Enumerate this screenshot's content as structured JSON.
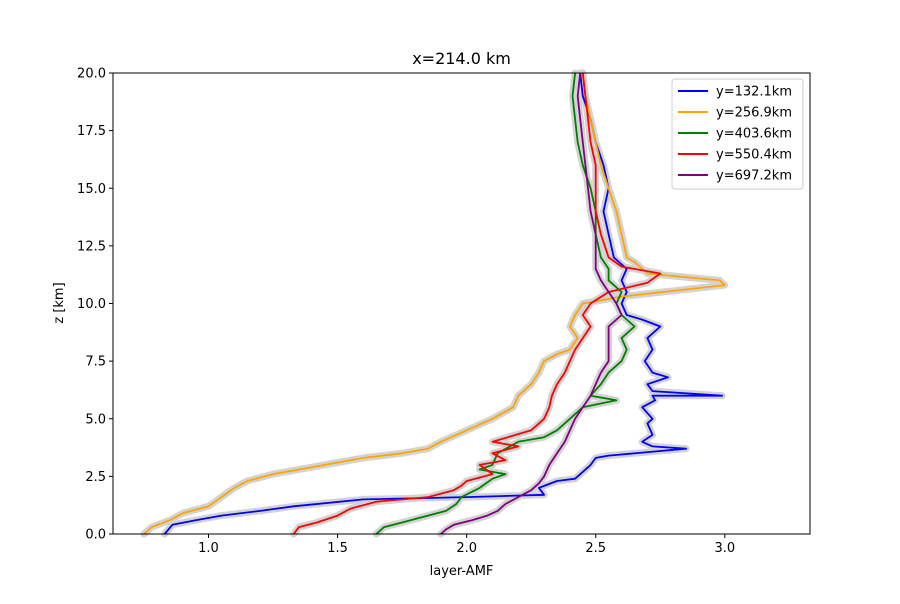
{
  "chart_data": {
    "type": "line",
    "title": "x=214.0 km",
    "xlabel": "layer-AMF",
    "ylabel": "z [km]",
    "xlim": [
      0.63,
      3.33
    ],
    "ylim": [
      0,
      20
    ],
    "x_ticks": [
      1.0,
      1.5,
      2.0,
      2.5,
      3.0
    ],
    "y_ticks": [
      0.0,
      2.5,
      5.0,
      7.5,
      10.0,
      12.5,
      15.0,
      17.5,
      20.0
    ],
    "x_tick_labels": [
      "1.0",
      "1.5",
      "2.0",
      "2.5",
      "3.0"
    ],
    "y_tick_labels": [
      "0.0",
      "2.5",
      "5.0",
      "7.5",
      "10.0",
      "12.5",
      "15.0",
      "17.5",
      "20.0"
    ],
    "grid": false,
    "legend_position": "top-right",
    "uncertainty_band_color": "#d3d3d3",
    "series": [
      {
        "name": "y=132.1km",
        "color": "#0000ff",
        "points": [
          [
            0.83,
            0.0
          ],
          [
            0.86,
            0.4
          ],
          [
            0.95,
            0.6
          ],
          [
            1.05,
            0.8
          ],
          [
            1.2,
            1.0
          ],
          [
            1.33,
            1.2
          ],
          [
            1.6,
            1.5
          ],
          [
            2.0,
            1.6
          ],
          [
            2.3,
            1.7
          ],
          [
            2.28,
            2.0
          ],
          [
            2.35,
            2.3
          ],
          [
            2.42,
            2.4
          ],
          [
            2.48,
            3.0
          ],
          [
            2.5,
            3.3
          ],
          [
            2.55,
            3.4
          ],
          [
            2.85,
            3.7
          ],
          [
            2.72,
            3.8
          ],
          [
            2.68,
            4.0
          ],
          [
            2.72,
            4.3
          ],
          [
            2.7,
            4.8
          ],
          [
            2.72,
            5.0
          ],
          [
            2.68,
            5.5
          ],
          [
            2.73,
            5.8
          ],
          [
            2.72,
            6.0
          ],
          [
            2.99,
            6.0
          ],
          [
            2.72,
            6.2
          ],
          [
            2.7,
            6.5
          ],
          [
            2.78,
            6.8
          ],
          [
            2.72,
            7.0
          ],
          [
            2.69,
            7.5
          ],
          [
            2.72,
            8.0
          ],
          [
            2.7,
            8.5
          ],
          [
            2.75,
            9.0
          ],
          [
            2.68,
            9.3
          ],
          [
            2.62,
            9.5
          ],
          [
            2.6,
            10.0
          ],
          [
            2.62,
            10.5
          ],
          [
            2.6,
            11.0
          ],
          [
            2.62,
            11.5
          ],
          [
            2.57,
            12.0
          ],
          [
            2.55,
            13.0
          ],
          [
            2.53,
            14.0
          ],
          [
            2.55,
            15.0
          ],
          [
            2.53,
            16.0
          ],
          [
            2.5,
            17.0
          ],
          [
            2.48,
            18.0
          ],
          [
            2.45,
            19.0
          ],
          [
            2.44,
            20.0
          ]
        ]
      },
      {
        "name": "y=256.9km",
        "color": "#ffa500",
        "points": [
          [
            0.75,
            0.0
          ],
          [
            0.78,
            0.3
          ],
          [
            0.85,
            0.6
          ],
          [
            0.9,
            0.9
          ],
          [
            1.0,
            1.2
          ],
          [
            1.05,
            1.6
          ],
          [
            1.1,
            2.0
          ],
          [
            1.15,
            2.3
          ],
          [
            1.25,
            2.6
          ],
          [
            1.4,
            2.9
          ],
          [
            1.5,
            3.1
          ],
          [
            1.6,
            3.3
          ],
          [
            1.75,
            3.5
          ],
          [
            1.85,
            3.7
          ],
          [
            1.9,
            4.0
          ],
          [
            2.0,
            4.5
          ],
          [
            2.1,
            5.0
          ],
          [
            2.18,
            5.5
          ],
          [
            2.2,
            6.0
          ],
          [
            2.25,
            6.5
          ],
          [
            2.28,
            7.0
          ],
          [
            2.3,
            7.5
          ],
          [
            2.35,
            7.8
          ],
          [
            2.4,
            8.0
          ],
          [
            2.43,
            8.5
          ],
          [
            2.4,
            9.0
          ],
          [
            2.42,
            9.5
          ],
          [
            2.45,
            10.0
          ],
          [
            2.6,
            10.3
          ],
          [
            3.0,
            10.8
          ],
          [
            2.98,
            11.0
          ],
          [
            2.7,
            11.3
          ],
          [
            2.65,
            11.8
          ],
          [
            2.62,
            12.0
          ],
          [
            2.6,
            13.0
          ],
          [
            2.58,
            14.0
          ],
          [
            2.55,
            15.0
          ],
          [
            2.52,
            16.0
          ],
          [
            2.5,
            17.0
          ],
          [
            2.48,
            18.0
          ],
          [
            2.46,
            19.0
          ],
          [
            2.45,
            20.0
          ]
        ]
      },
      {
        "name": "y=403.6km",
        "color": "#008000",
        "points": [
          [
            1.65,
            0.0
          ],
          [
            1.68,
            0.3
          ],
          [
            1.75,
            0.5
          ],
          [
            1.85,
            0.8
          ],
          [
            1.92,
            1.0
          ],
          [
            1.96,
            1.3
          ],
          [
            1.98,
            1.6
          ],
          [
            2.05,
            2.0
          ],
          [
            2.1,
            2.4
          ],
          [
            2.15,
            2.6
          ],
          [
            2.05,
            2.8
          ],
          [
            2.1,
            3.0
          ],
          [
            2.12,
            3.5
          ],
          [
            2.2,
            4.0
          ],
          [
            2.3,
            4.2
          ],
          [
            2.35,
            4.5
          ],
          [
            2.4,
            5.0
          ],
          [
            2.45,
            5.5
          ],
          [
            2.58,
            5.8
          ],
          [
            2.48,
            6.0
          ],
          [
            2.52,
            6.5
          ],
          [
            2.55,
            7.0
          ],
          [
            2.6,
            7.5
          ],
          [
            2.62,
            8.0
          ],
          [
            2.6,
            8.5
          ],
          [
            2.65,
            9.0
          ],
          [
            2.6,
            9.5
          ],
          [
            2.58,
            10.0
          ],
          [
            2.6,
            10.5
          ],
          [
            2.55,
            11.0
          ],
          [
            2.55,
            11.5
          ],
          [
            2.52,
            12.0
          ],
          [
            2.5,
            13.0
          ],
          [
            2.5,
            14.0
          ],
          [
            2.48,
            15.0
          ],
          [
            2.45,
            16.0
          ],
          [
            2.43,
            17.0
          ],
          [
            2.42,
            18.0
          ],
          [
            2.41,
            19.0
          ],
          [
            2.42,
            20.0
          ]
        ]
      },
      {
        "name": "y=550.4km",
        "color": "#ff0000",
        "points": [
          [
            1.33,
            0.0
          ],
          [
            1.35,
            0.3
          ],
          [
            1.42,
            0.5
          ],
          [
            1.5,
            0.8
          ],
          [
            1.55,
            1.1
          ],
          [
            1.65,
            1.4
          ],
          [
            1.85,
            1.6
          ],
          [
            1.95,
            1.9
          ],
          [
            1.98,
            2.1
          ],
          [
            2.0,
            2.3
          ],
          [
            2.1,
            2.6
          ],
          [
            2.05,
            3.0
          ],
          [
            2.15,
            3.2
          ],
          [
            2.1,
            3.5
          ],
          [
            2.2,
            3.8
          ],
          [
            2.1,
            4.0
          ],
          [
            2.25,
            4.5
          ],
          [
            2.3,
            5.0
          ],
          [
            2.32,
            5.5
          ],
          [
            2.33,
            6.0
          ],
          [
            2.35,
            6.5
          ],
          [
            2.38,
            7.0
          ],
          [
            2.4,
            7.5
          ],
          [
            2.42,
            8.0
          ],
          [
            2.45,
            8.5
          ],
          [
            2.48,
            9.0
          ],
          [
            2.45,
            9.5
          ],
          [
            2.48,
            10.0
          ],
          [
            2.55,
            10.5
          ],
          [
            2.7,
            10.9
          ],
          [
            2.75,
            11.3
          ],
          [
            2.6,
            11.6
          ],
          [
            2.55,
            12.0
          ],
          [
            2.52,
            13.0
          ],
          [
            2.5,
            14.0
          ],
          [
            2.5,
            15.0
          ],
          [
            2.5,
            16.0
          ],
          [
            2.48,
            17.0
          ],
          [
            2.47,
            18.0
          ],
          [
            2.46,
            19.0
          ],
          [
            2.45,
            20.0
          ]
        ]
      },
      {
        "name": "y=697.2km",
        "color": "#800080",
        "points": [
          [
            1.9,
            0.0
          ],
          [
            1.92,
            0.2
          ],
          [
            1.95,
            0.4
          ],
          [
            2.02,
            0.6
          ],
          [
            2.08,
            0.8
          ],
          [
            2.12,
            1.0
          ],
          [
            2.15,
            1.3
          ],
          [
            2.2,
            1.6
          ],
          [
            2.25,
            1.9
          ],
          [
            2.28,
            2.2
          ],
          [
            2.3,
            2.5
          ],
          [
            2.32,
            3.0
          ],
          [
            2.35,
            3.5
          ],
          [
            2.38,
            4.0
          ],
          [
            2.4,
            4.5
          ],
          [
            2.42,
            5.0
          ],
          [
            2.45,
            5.5
          ],
          [
            2.48,
            6.0
          ],
          [
            2.5,
            6.5
          ],
          [
            2.52,
            7.0
          ],
          [
            2.55,
            7.5
          ],
          [
            2.55,
            8.0
          ],
          [
            2.55,
            8.5
          ],
          [
            2.55,
            9.0
          ],
          [
            2.6,
            9.5
          ],
          [
            2.58,
            10.0
          ],
          [
            2.55,
            10.5
          ],
          [
            2.52,
            11.0
          ],
          [
            2.5,
            11.5
          ],
          [
            2.5,
            12.0
          ],
          [
            2.5,
            13.0
          ],
          [
            2.48,
            14.0
          ],
          [
            2.47,
            15.0
          ],
          [
            2.46,
            16.0
          ],
          [
            2.45,
            17.0
          ],
          [
            2.44,
            18.0
          ],
          [
            2.43,
            19.0
          ],
          [
            2.44,
            20.0
          ]
        ]
      }
    ]
  }
}
